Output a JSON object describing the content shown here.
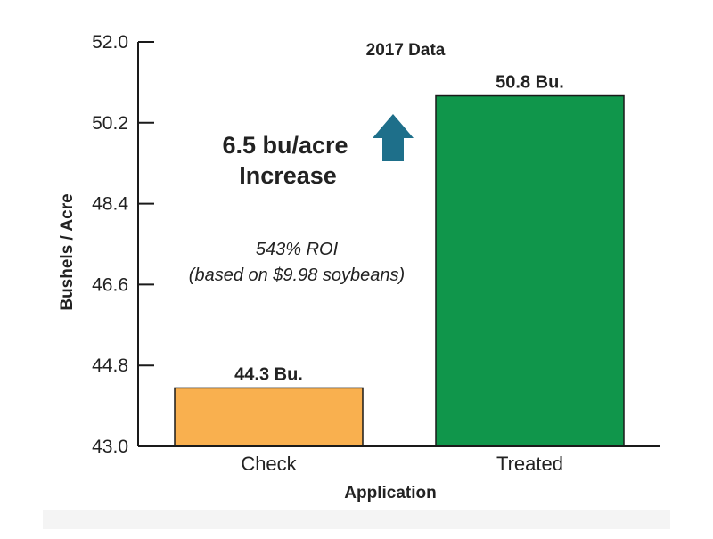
{
  "chart_data": {
    "type": "bar",
    "title": "2017 Data",
    "xlabel": "Application",
    "ylabel": "Bushels / Acre",
    "ylim": [
      43.0,
      52.0
    ],
    "yticks": [
      "43.0",
      "44.8",
      "46.6",
      "48.4",
      "50.2",
      "52.0"
    ],
    "categories": [
      "Check",
      "Treated"
    ],
    "values": [
      44.3,
      50.8
    ],
    "data_labels": [
      "44.3 Bu.",
      "50.8 Bu."
    ],
    "colors": [
      "#f9b04f",
      "#10964b"
    ],
    "grid": false,
    "annotations": {
      "increase_line1": "6.5 bu/acre",
      "increase_line2": "Increase",
      "roi_line1": "543% ROI",
      "roi_line2": "(based on $9.98 soybeans)",
      "arrow_color": "#1e6f8a",
      "arrow_icon": "up-arrow-icon"
    }
  }
}
